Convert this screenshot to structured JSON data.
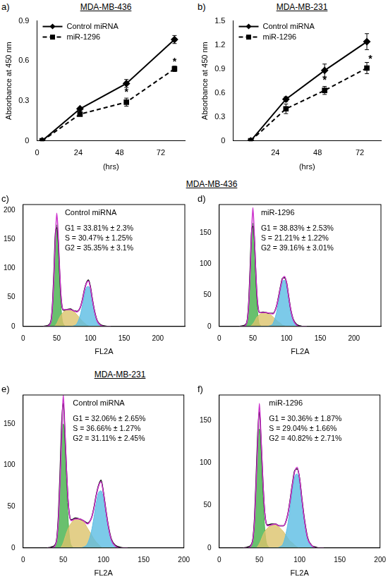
{
  "chart_data": [
    {
      "type": "line",
      "panel": "a)",
      "title": "MDA-MB-436",
      "x_label": "(hrs)",
      "y_label": "Absorbance at 450 nm",
      "x": [
        3,
        25,
        52,
        80
      ],
      "xlim": [
        0,
        86
      ],
      "xticks": [
        0,
        24,
        48,
        72
      ],
      "ylim": [
        0,
        0.9
      ],
      "yticks": [
        0,
        0.3,
        0.6,
        0.9
      ],
      "grid": false,
      "legend": "upper left",
      "series": [
        {
          "name": "Control miRNA",
          "color": "#000000",
          "marker": "diamond",
          "line_style": "solid",
          "values": [
            0,
            0.24,
            0.43,
            0.76
          ],
          "errors": [
            0,
            0.01,
            0.03,
            0.03
          ]
        },
        {
          "name": "miR-1296",
          "color": "#000000",
          "marker": "square",
          "line_style": "dashed",
          "values": [
            0,
            0.2,
            0.29,
            0.54
          ],
          "errors": [
            0,
            0.01,
            0.03,
            0.02
          ]
        }
      ],
      "annotations": [
        {
          "text": "*",
          "x": 52,
          "y": 0.36
        },
        {
          "text": "*",
          "x": 80,
          "y": 0.59
        }
      ]
    },
    {
      "type": "line",
      "panel": "b)",
      "title": "MDA-MB-231",
      "x_label": "(hrs)",
      "y_label": "Absorbance at 450 nm",
      "x": [
        10,
        30,
        52,
        76
      ],
      "xlim": [
        0,
        84
      ],
      "xticks": [
        24,
        48,
        72
      ],
      "ylim": [
        0,
        1.5
      ],
      "yticks": [
        0,
        0.3,
        0.6,
        0.9,
        1.2,
        1.5
      ],
      "grid": false,
      "legend": "upper left",
      "series": [
        {
          "name": "Control miRNA",
          "color": "#000000",
          "marker": "diamond",
          "line_style": "solid",
          "values": [
            0,
            0.52,
            0.88,
            1.24
          ],
          "errors": [
            0,
            0.03,
            0.08,
            0.1
          ]
        },
        {
          "name": "miR-1296",
          "color": "#000000",
          "marker": "square",
          "line_style": "dashed",
          "values": [
            0,
            0.4,
            0.63,
            0.91
          ],
          "errors": [
            0,
            0.06,
            0.05,
            0.07
          ]
        }
      ],
      "annotations": [
        {
          "text": "*",
          "x": 52,
          "y": 0.75
        },
        {
          "text": "*",
          "x": 78,
          "y": 1.02
        }
      ]
    },
    {
      "type": "line",
      "panel": "c)",
      "subtitle": "Control miRNA",
      "x_label": "FL2A",
      "x": [
        30,
        35,
        40,
        42,
        44,
        46,
        48,
        50,
        52,
        54,
        56,
        58,
        60,
        65,
        70,
        75,
        80,
        85,
        88,
        91,
        94,
        97,
        100,
        103,
        106,
        110,
        115,
        120,
        125,
        130
      ],
      "xlim": [
        0,
        240
      ],
      "xticks": [
        0,
        50,
        100,
        150,
        200
      ],
      "ylim": [
        0,
        210
      ],
      "yticks": [
        0,
        50,
        100,
        150,
        200
      ],
      "grid": false,
      "annotations": [
        "G1 = 33.81% ± 2.3%",
        "S = 30.47% ± 1.25%",
        "G2 = 35.35% ± 3.1%"
      ],
      "series": [
        {
          "type": "area",
          "color": "#44b04a",
          "values": [
            0,
            0,
            4,
            12,
            40,
            91,
            149,
            175,
            149,
            91,
            40,
            12,
            4,
            0,
            0,
            0,
            0,
            0,
            0,
            0,
            0,
            0,
            0,
            0,
            0,
            0,
            0,
            0,
            0,
            0
          ]
        },
        {
          "type": "area",
          "color": "#dcc36b",
          "values": [
            0,
            0,
            0,
            0,
            0,
            0,
            2,
            5,
            10,
            15,
            19,
            22,
            25,
            29,
            29,
            26,
            20,
            13,
            9,
            6,
            3,
            1,
            0,
            0,
            0,
            0,
            0,
            0,
            0,
            0
          ]
        },
        {
          "type": "area",
          "color": "#5bbde4",
          "values": [
            0,
            0,
            0,
            0,
            0,
            0,
            0,
            0,
            0,
            0,
            0,
            0,
            0,
            0,
            0,
            1,
            5,
            20,
            36,
            54,
            67,
            69,
            60,
            43,
            25,
            9,
            2,
            0,
            0,
            0
          ]
        },
        {
          "type": "line",
          "color": "#000000",
          "values": [
            0,
            1,
            5,
            14,
            45,
            100,
            160,
            170,
            150,
            100,
            55,
            33,
            28,
            29,
            30,
            27,
            26,
            33,
            46,
            63,
            75,
            80,
            68,
            46,
            27,
            10,
            3,
            1,
            0,
            0
          ]
        },
        {
          "type": "line",
          "color": "#cc33cc",
          "values": [
            0,
            0,
            4,
            12,
            40,
            91,
            151,
            195,
            162,
            106,
            59,
            34,
            29,
            29,
            29,
            27,
            25,
            33,
            45,
            62,
            74,
            78,
            66,
            45,
            26,
            9,
            2,
            0,
            0,
            0
          ]
        }
      ]
    },
    {
      "type": "line",
      "panel": "d)",
      "subtitle": "miR-1296",
      "x_label": "FL2A",
      "x": [
        30,
        35,
        40,
        42,
        44,
        46,
        48,
        50,
        52,
        54,
        56,
        58,
        60,
        65,
        70,
        75,
        80,
        85,
        88,
        91,
        94,
        97,
        100,
        103,
        106,
        110,
        115,
        120,
        125,
        130
      ],
      "xlim": [
        0,
        240
      ],
      "xticks": [
        0,
        50,
        100,
        150,
        200
      ],
      "ylim": [
        0,
        195
      ],
      "yticks": [
        0,
        50,
        100,
        150
      ],
      "grid": false,
      "annotations": [
        "G1 = 38.83% ± 2.53%",
        "S = 21.21% ± 1.22%",
        "G2 = 39.16% ± 3.01%"
      ],
      "series": [
        {
          "type": "area",
          "color": "#44b04a",
          "values": [
            0,
            0,
            3,
            12,
            38,
            86,
            140,
            165,
            140,
            86,
            38,
            12,
            3,
            0,
            0,
            0,
            0,
            0,
            0,
            0,
            0,
            0,
            0,
            0,
            0,
            0,
            0,
            0,
            0,
            0
          ]
        },
        {
          "type": "area",
          "color": "#dcc36b",
          "values": [
            0,
            0,
            0,
            0,
            0,
            0,
            2,
            4,
            7,
            11,
            15,
            17,
            19,
            22,
            22,
            20,
            15,
            10,
            7,
            5,
            2,
            1,
            0,
            0,
            0,
            0,
            0,
            0,
            0,
            0
          ]
        },
        {
          "type": "area",
          "color": "#5bbde4",
          "values": [
            0,
            0,
            0,
            0,
            0,
            0,
            0,
            0,
            0,
            0,
            0,
            0,
            0,
            0,
            0,
            1,
            5,
            22,
            39,
            58,
            72,
            74,
            64,
            46,
            27,
            10,
            2,
            0,
            0,
            0
          ]
        },
        {
          "type": "line",
          "color": "#000000",
          "values": [
            0,
            1,
            4,
            13,
            42,
            95,
            150,
            160,
            145,
            95,
            50,
            28,
            22,
            23,
            22,
            21,
            21,
            32,
            47,
            64,
            77,
            78,
            70,
            49,
            28,
            11,
            3,
            1,
            0,
            0
          ]
        },
        {
          "type": "line",
          "color": "#cc33cc",
          "values": [
            0,
            0,
            3,
            12,
            38,
            86,
            145,
            190,
            150,
            97,
            53,
            29,
            22,
            22,
            22,
            21,
            20,
            32,
            46,
            63,
            76,
            80,
            70,
            48,
            28,
            10,
            2,
            0,
            0,
            0
          ]
        }
      ]
    },
    {
      "type": "line",
      "panel": "e)",
      "subtitle": "Control miRNA",
      "x_label": "FL2A",
      "x": [
        30,
        35,
        40,
        42,
        44,
        46,
        48,
        50,
        52,
        54,
        56,
        58,
        60,
        65,
        70,
        75,
        80,
        85,
        88,
        91,
        94,
        97,
        100,
        103,
        106,
        110,
        115,
        120,
        125,
        130
      ],
      "xlim": [
        0,
        200
      ],
      "xticks": [
        0,
        50,
        100,
        150,
        200
      ],
      "ylim": [
        0,
        185
      ],
      "yticks": [
        0,
        50,
        100,
        150
      ],
      "grid": false,
      "annotations": [
        "G1 = 32.06% ± 2.65%",
        "S = 36.66% ± 1.27%",
        "G2 = 31.11% ± 2.45%"
      ],
      "series": [
        {
          "type": "area",
          "color": "#44b04a",
          "values": [
            0,
            0,
            3,
            11,
            35,
            78,
            128,
            150,
            128,
            78,
            35,
            11,
            3,
            0,
            0,
            0,
            0,
            0,
            0,
            0,
            0,
            0,
            0,
            0,
            0,
            0,
            0,
            0,
            0,
            0
          ]
        },
        {
          "type": "area",
          "color": "#dcc36b",
          "values": [
            0,
            0,
            0,
            0,
            0,
            0,
            2,
            6,
            12,
            18,
            23,
            27,
            30,
            35,
            35,
            32,
            24,
            16,
            11,
            7,
            4,
            1,
            0,
            0,
            0,
            0,
            0,
            0,
            0,
            0
          ]
        },
        {
          "type": "area",
          "color": "#5bbde4",
          "values": [
            0,
            0,
            0,
            0,
            0,
            0,
            0,
            0,
            0,
            0,
            0,
            0,
            0,
            0,
            0,
            1,
            5,
            20,
            36,
            54,
            67,
            69,
            60,
            43,
            25,
            9,
            2,
            0,
            0,
            0
          ]
        },
        {
          "type": "line",
          "color": "#000000",
          "values": [
            0,
            1,
            4,
            12,
            40,
            90,
            150,
            175,
            140,
            95,
            57,
            38,
            34,
            36,
            35,
            33,
            30,
            36,
            48,
            64,
            76,
            82,
            67,
            46,
            27,
            10,
            3,
            1,
            0,
            0
          ]
        },
        {
          "type": "line",
          "color": "#cc33cc",
          "values": [
            0,
            0,
            3,
            11,
            35,
            80,
            135,
            185,
            145,
            96,
            58,
            38,
            33,
            35,
            35,
            33,
            29,
            36,
            47,
            63,
            75,
            80,
            66,
            45,
            26,
            9,
            2,
            0,
            0,
            0
          ]
        }
      ]
    },
    {
      "type": "line",
      "panel": "f)",
      "subtitle": "miR-1296",
      "x_label": "FL2A",
      "x": [
        30,
        35,
        40,
        42,
        44,
        46,
        48,
        50,
        52,
        54,
        56,
        58,
        60,
        65,
        70,
        75,
        80,
        85,
        88,
        91,
        94,
        97,
        100,
        103,
        106,
        110,
        115,
        120,
        125,
        130
      ],
      "xlim": [
        0,
        200
      ],
      "xticks": [
        0,
        50,
        100,
        150,
        200
      ],
      "ylim": [
        0,
        180
      ],
      "yticks": [
        0,
        50,
        100,
        150
      ],
      "grid": false,
      "annotations": [
        "G1 = 30.36% ± 1.87%",
        "S = 29.04% ± 1.66%",
        "G2 = 40.82% ± 2.71%"
      ],
      "series": [
        {
          "type": "area",
          "color": "#44b04a",
          "values": [
            0,
            0,
            3,
            10,
            32,
            73,
            119,
            140,
            119,
            73,
            32,
            10,
            3,
            0,
            0,
            0,
            0,
            0,
            0,
            0,
            0,
            0,
            0,
            0,
            0,
            0,
            0,
            0,
            0,
            0
          ]
        },
        {
          "type": "area",
          "color": "#dcc36b",
          "values": [
            0,
            0,
            0,
            0,
            0,
            0,
            2,
            5,
            9,
            14,
            18,
            21,
            23,
            27,
            27,
            24,
            19,
            12,
            8,
            6,
            3,
            1,
            0,
            0,
            0,
            0,
            0,
            0,
            0,
            0
          ]
        },
        {
          "type": "area",
          "color": "#5bbde4",
          "values": [
            0,
            0,
            0,
            0,
            0,
            0,
            0,
            0,
            0,
            0,
            0,
            0,
            0,
            0,
            0,
            1,
            6,
            26,
            46,
            68,
            84,
            87,
            75,
            54,
            32,
            11,
            3,
            0,
            0,
            0
          ]
        },
        {
          "type": "line",
          "color": "#000000",
          "values": [
            0,
            1,
            4,
            11,
            36,
            83,
            135,
            160,
            128,
            86,
            50,
            31,
            27,
            28,
            28,
            26,
            26,
            38,
            55,
            75,
            91,
            93,
            82,
            57,
            34,
            12,
            3,
            1,
            0,
            0
          ]
        },
        {
          "type": "line",
          "color": "#cc33cc",
          "values": [
            0,
            0,
            3,
            10,
            32,
            75,
            125,
            170,
            132,
            88,
            50,
            31,
            26,
            27,
            28,
            26,
            26,
            38,
            54,
            74,
            90,
            95,
            82,
            56,
            33,
            11,
            3,
            0,
            0,
            0
          ]
        }
      ]
    }
  ],
  "section_headers": [
    "MDA-MB-436",
    "MDA-MB-231"
  ]
}
